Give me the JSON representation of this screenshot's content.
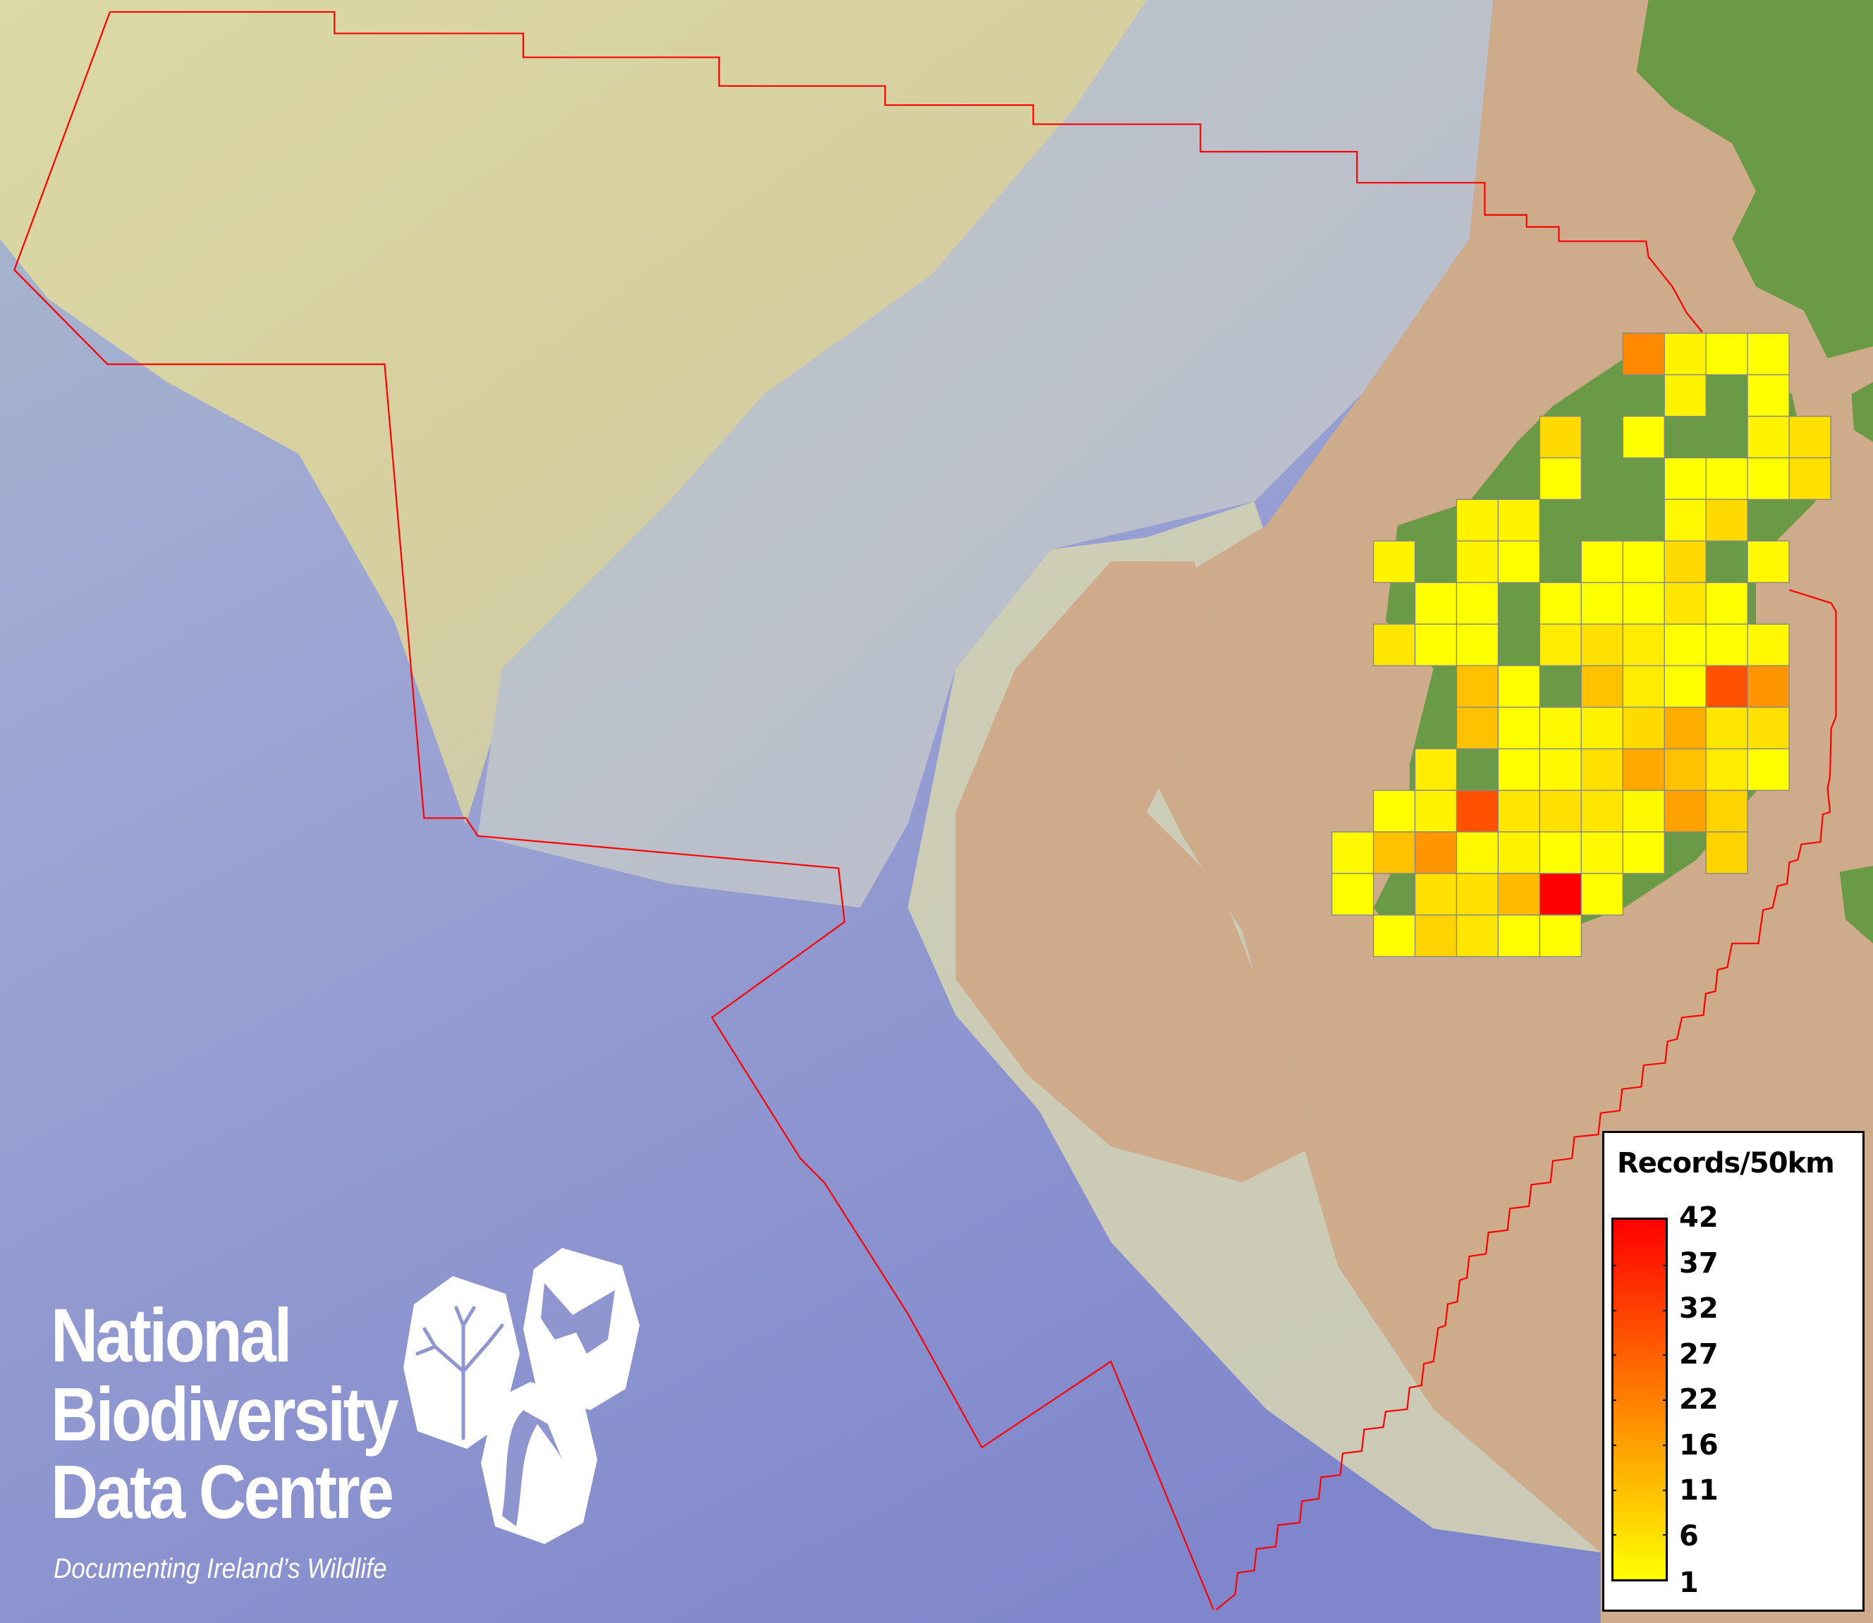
{
  "legend": {
    "title": "Records/50km",
    "labels": [
      "42",
      "37",
      "32",
      "27",
      "22",
      "16",
      "11",
      "6",
      "1"
    ],
    "min": 1,
    "max": 42,
    "color_low": "#ffff00",
    "color_high": "#ff0000"
  },
  "logo": {
    "line1": "National",
    "line2": "Biodiversity",
    "line3": "Data Centre",
    "tagline": "Documenting Ireland’s Wildlife",
    "icons": [
      "tree-icon",
      "butterfly-icon",
      "seahorse-icon"
    ]
  },
  "map": {
    "boundary_color": "#ff0000",
    "land_color": "#6a9a45",
    "grid_line_color": "#888888",
    "grid_records": [
      [
        null,
        null,
        null,
        null,
        null,
        null,
        null,
        20,
        3,
        1,
        1,
        null
      ],
      [
        null,
        null,
        null,
        null,
        null,
        null,
        null,
        null,
        3,
        null,
        1,
        null
      ],
      [
        null,
        null,
        null,
        null,
        null,
        7,
        null,
        1,
        null,
        null,
        3,
        6
      ],
      [
        null,
        null,
        null,
        null,
        null,
        1,
        null,
        null,
        1,
        1,
        1,
        6
      ],
      [
        null,
        null,
        null,
        3,
        3,
        null,
        null,
        null,
        2,
        7,
        null,
        null
      ],
      [
        null,
        3,
        null,
        3,
        1,
        null,
        1,
        1,
        7,
        null,
        2,
        null
      ],
      [
        null,
        null,
        1,
        1,
        null,
        1,
        1,
        1,
        5,
        1,
        null,
        null
      ],
      [
        null,
        5,
        1,
        1,
        null,
        4,
        6,
        4,
        1,
        1,
        2,
        null
      ],
      [
        null,
        null,
        null,
        11,
        1,
        null,
        11,
        4,
        1,
        29,
        18,
        null
      ],
      [
        null,
        null,
        null,
        11,
        1,
        2,
        3,
        7,
        14,
        5,
        6,
        null
      ],
      [
        null,
        null,
        4,
        null,
        1,
        2,
        6,
        15,
        11,
        4,
        1,
        null
      ],
      [
        null,
        1,
        3,
        29,
        5,
        6,
        5,
        2,
        16,
        8,
        null,
        null
      ],
      [
        2,
        11,
        18,
        2,
        3,
        1,
        2,
        1,
        null,
        8,
        null,
        null
      ],
      [
        1,
        null,
        6,
        6,
        12,
        42,
        1,
        null,
        null,
        null,
        null,
        null
      ],
      [
        null,
        1,
        8,
        5,
        1,
        1,
        null,
        null,
        null,
        null,
        null,
        null
      ]
    ]
  }
}
